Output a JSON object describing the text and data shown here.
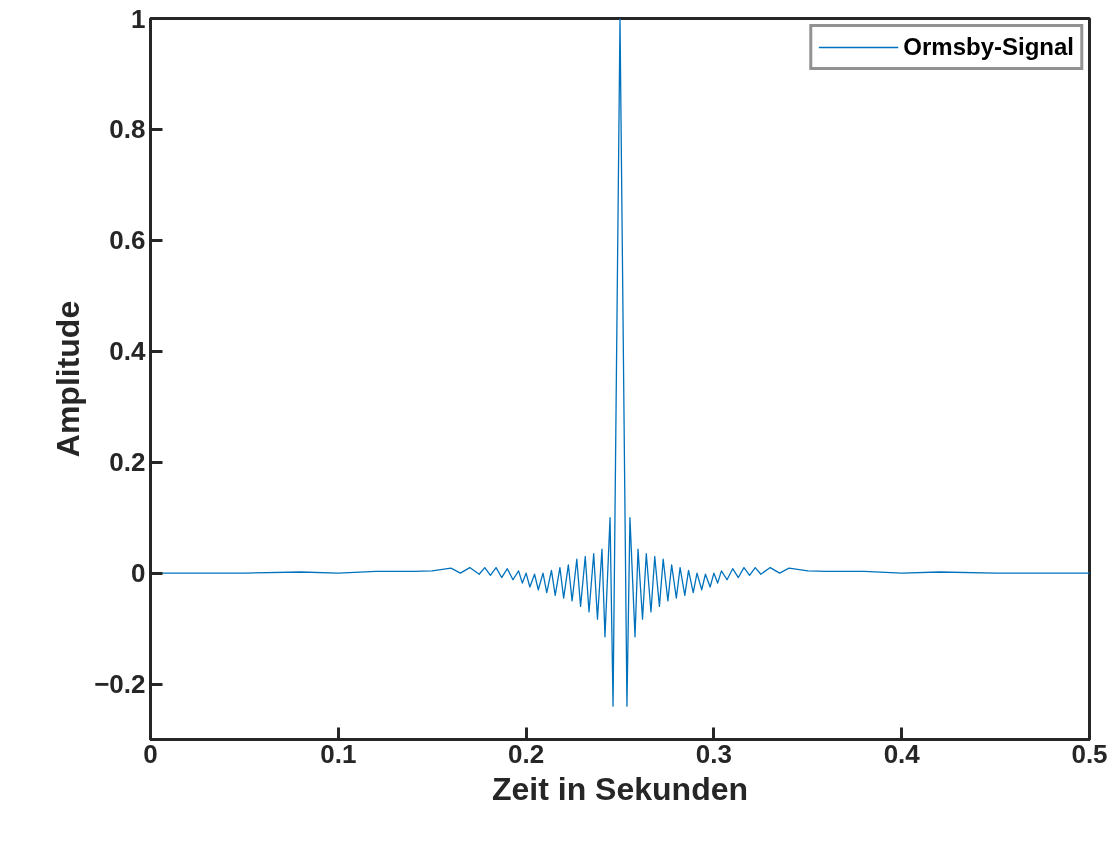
{
  "chart_data": {
    "type": "line",
    "xlabel": "Zeit in Sekunden",
    "ylabel": "Amplitude",
    "xlim": [
      0,
      0.5
    ],
    "ylim": [
      -0.3,
      1
    ],
    "xticks": [
      0,
      0.1,
      0.2,
      0.3,
      0.4,
      0.5
    ],
    "yticks": [
      -0.2,
      0,
      0.2,
      0.4,
      0.6,
      0.8,
      1
    ],
    "grid": false,
    "legend": "top right",
    "marker": "none",
    "line_style": "solid",
    "series": [
      {
        "name": "Ormsby-Signal",
        "color": "#0072bd",
        "x": [
          0,
          0.05,
          0.08,
          0.1,
          0.12,
          0.14,
          0.15,
          0.16,
          0.165,
          0.17,
          0.175,
          0.178,
          0.181,
          0.184,
          0.187,
          0.19,
          0.193,
          0.196,
          0.198,
          0.2,
          0.202,
          0.2045,
          0.2065,
          0.209,
          0.211,
          0.2135,
          0.2155,
          0.218,
          0.22,
          0.2225,
          0.2245,
          0.227,
          0.229,
          0.2315,
          0.2335,
          0.236,
          0.238,
          0.2404,
          0.242,
          0.2447,
          0.2463,
          0.25,
          0.2537,
          0.2553,
          0.258,
          0.2596,
          0.262,
          0.264,
          0.2665,
          0.2685,
          0.271,
          0.273,
          0.2755,
          0.2775,
          0.28,
          0.282,
          0.2845,
          0.2865,
          0.289,
          0.291,
          0.2935,
          0.2955,
          0.298,
          0.3,
          0.302,
          0.304,
          0.307,
          0.31,
          0.313,
          0.316,
          0.319,
          0.322,
          0.325,
          0.33,
          0.335,
          0.34,
          0.35,
          0.36,
          0.38,
          0.4,
          0.42,
          0.45,
          0.5
        ],
        "values": [
          0,
          0,
          0.002,
          0,
          0.003,
          0.003,
          0.004,
          0.009,
          0,
          0.01,
          -0.002,
          0.01,
          -0.004,
          0.01,
          -0.008,
          0.008,
          -0.012,
          0.004,
          -0.018,
          0,
          -0.025,
          -0.002,
          -0.03,
          0,
          -0.035,
          0.005,
          -0.04,
          0.01,
          -0.045,
          0.015,
          -0.05,
          0.025,
          -0.06,
          0.03,
          -0.07,
          0.035,
          -0.083,
          0.043,
          -0.115,
          0.1,
          -0.24,
          1,
          -0.24,
          0.1,
          -0.115,
          0.043,
          -0.083,
          0.035,
          -0.07,
          0.03,
          -0.06,
          0.025,
          -0.05,
          0.015,
          -0.045,
          0.01,
          -0.04,
          0.005,
          -0.035,
          0,
          -0.03,
          -0.002,
          -0.025,
          0,
          -0.018,
          0.004,
          -0.012,
          0.008,
          -0.008,
          0.01,
          -0.004,
          0.01,
          -0.002,
          0.01,
          0,
          0.009,
          0.004,
          0.003,
          0.003,
          0,
          0.002,
          0,
          0
        ]
      }
    ]
  }
}
